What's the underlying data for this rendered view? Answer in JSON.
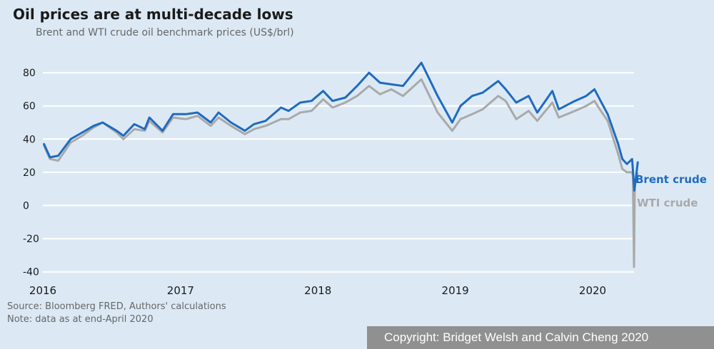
{
  "chart_data": {
    "type": "line",
    "title": "Oil prices are at multi-decade lows",
    "subtitle": "Brent and WTI crude oil benchmark prices (US$/brl)",
    "xlabel": "",
    "ylabel": "",
    "x_ticks": [
      "2016",
      "2017",
      "2018",
      "2019",
      "2020"
    ],
    "y_ticks": [
      "80",
      "60",
      "40",
      "20",
      "0",
      "-20",
      "-40"
    ],
    "ylim": [
      -40,
      90
    ],
    "xlim": [
      "2016-01-01",
      "2020-04-30"
    ],
    "grid": true,
    "legend": "end-of-line labels",
    "series": [
      {
        "name": "Brent crude",
        "color": "#1f6bbf",
        "x": [
          "2016-01-04",
          "2016-01-20",
          "2016-02-11",
          "2016-03-15",
          "2016-04-15",
          "2016-05-15",
          "2016-06-08",
          "2016-07-15",
          "2016-08-02",
          "2016-08-31",
          "2016-09-28",
          "2016-10-10",
          "2016-11-14",
          "2016-12-12",
          "2017-01-15",
          "2017-02-15",
          "2017-03-22",
          "2017-04-12",
          "2017-05-15",
          "2017-06-21",
          "2017-07-15",
          "2017-08-15",
          "2017-09-25",
          "2017-10-15",
          "2017-11-15",
          "2017-12-15",
          "2018-01-15",
          "2018-02-09",
          "2018-03-15",
          "2018-04-15",
          "2018-05-17",
          "2018-06-15",
          "2018-07-15",
          "2018-08-15",
          "2018-10-03",
          "2018-11-15",
          "2018-12-24",
          "2019-01-15",
          "2019-02-15",
          "2019-03-15",
          "2019-04-25",
          "2019-05-15",
          "2019-06-12",
          "2019-07-15",
          "2019-08-07",
          "2019-09-16",
          "2019-10-03",
          "2019-11-15",
          "2019-12-15",
          "2020-01-06",
          "2020-01-20",
          "2020-02-10",
          "2020-03-09",
          "2020-03-20",
          "2020-04-01",
          "2020-04-15",
          "2020-04-21",
          "2020-04-30"
        ],
        "values": [
          37,
          29,
          30,
          40,
          44,
          48,
          50,
          45,
          42,
          49,
          46,
          53,
          45,
          55,
          55,
          56,
          50,
          56,
          50,
          45,
          49,
          51,
          59,
          57,
          62,
          63,
          69,
          63,
          65,
          72,
          80,
          74,
          73,
          72,
          86,
          66,
          50,
          60,
          66,
          68,
          75,
          70,
          62,
          66,
          56,
          69,
          58,
          63,
          66,
          70,
          64,
          55,
          37,
          28,
          25,
          28,
          9,
          26
        ]
      },
      {
        "name": "WTI crude",
        "color": "#a9a9a9",
        "x": [
          "2016-01-04",
          "2016-01-20",
          "2016-02-11",
          "2016-03-15",
          "2016-04-15",
          "2016-05-15",
          "2016-06-08",
          "2016-07-15",
          "2016-08-02",
          "2016-08-31",
          "2016-09-28",
          "2016-10-10",
          "2016-11-14",
          "2016-12-12",
          "2017-01-15",
          "2017-02-15",
          "2017-03-22",
          "2017-04-12",
          "2017-05-15",
          "2017-06-21",
          "2017-07-15",
          "2017-08-15",
          "2017-09-25",
          "2017-10-15",
          "2017-11-15",
          "2017-12-15",
          "2018-01-15",
          "2018-02-09",
          "2018-03-15",
          "2018-04-15",
          "2018-05-17",
          "2018-06-15",
          "2018-07-15",
          "2018-08-15",
          "2018-10-03",
          "2018-11-15",
          "2018-12-24",
          "2019-01-15",
          "2019-02-15",
          "2019-03-15",
          "2019-04-25",
          "2019-05-15",
          "2019-06-12",
          "2019-07-15",
          "2019-08-07",
          "2019-09-16",
          "2019-10-03",
          "2019-11-15",
          "2019-12-15",
          "2020-01-06",
          "2020-01-20",
          "2020-02-10",
          "2020-03-09",
          "2020-03-20",
          "2020-04-01",
          "2020-04-15",
          "2020-04-17",
          "2020-04-20",
          "2020-04-22",
          "2020-04-30"
        ],
        "values": [
          36,
          28,
          27,
          38,
          42,
          47,
          50,
          44,
          40,
          46,
          45,
          51,
          44,
          53,
          52,
          54,
          48,
          53,
          48,
          43,
          46,
          48,
          52,
          52,
          56,
          57,
          64,
          59,
          62,
          66,
          72,
          67,
          70,
          66,
          76,
          56,
          45,
          52,
          55,
          58,
          66,
          63,
          52,
          57,
          51,
          62,
          53,
          57,
          60,
          63,
          58,
          51,
          31,
          22,
          20,
          20,
          18,
          -37,
          14,
          19
        ]
      }
    ],
    "annotations": [
      "Brent crude",
      "WTI crude"
    ]
  },
  "source_line": "Source: Bloomberg FRED, Authors' calculations",
  "note_line": "Note: data as at end-April 2020",
  "copyright": "Copyright: Bridget Welsh and Calvin Cheng 2020"
}
